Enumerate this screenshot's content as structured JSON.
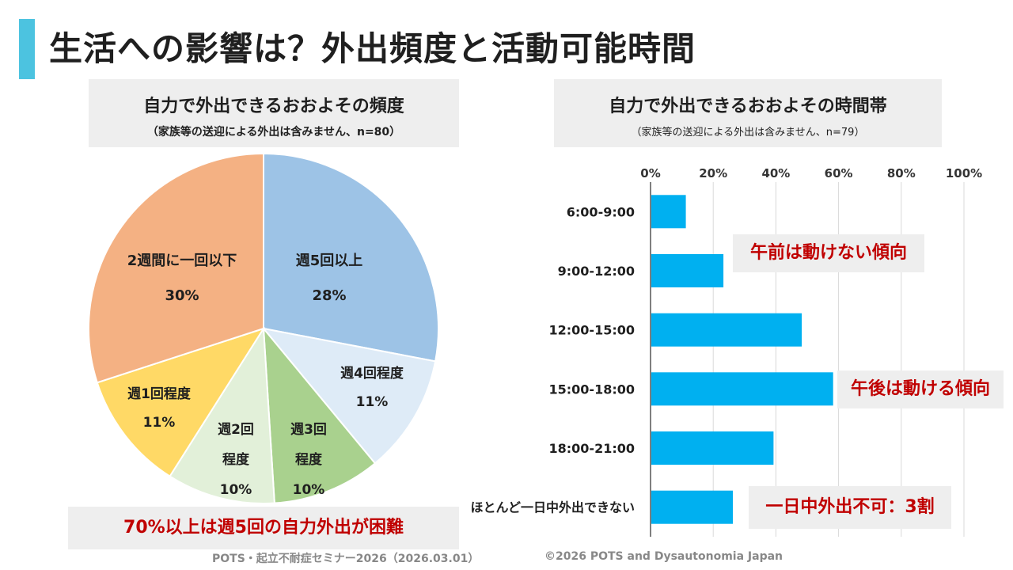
{
  "slide": {
    "title": "生活への影響は？外出頻度と活動可能時間",
    "footer_left": "POTS・起立不耐症セミナー2026（2026.03.01）",
    "footer_right": "©2026 POTS and Dysautonomia Japan",
    "accent_color": "#4cc3e0"
  },
  "left_panel": {
    "title": "自力で外出できるおおよその頻度",
    "subtitle": "（家族等の送迎による外出は含みません、n=80）",
    "callout": "70%以上は週5回の自力外出が困難"
  },
  "right_panel": {
    "title": "自力で外出できるおおよその時間帯",
    "subtitle": "（家族等の送迎による外出は含みません、n=79）",
    "annotations": [
      "午前は動けない傾向",
      "午後は動ける傾向",
      "一日中外出不可：3割"
    ]
  },
  "chart_data": [
    {
      "type": "pie",
      "slices": [
        {
          "label": "週5回以上",
          "label_lines": [
            "週5回以上"
          ],
          "value": 28,
          "value_text": "28%",
          "color": "#9dc3e6"
        },
        {
          "label": "週4回程度",
          "label_lines": [
            "週4回程度"
          ],
          "value": 11,
          "value_text": "11%",
          "color": "#deebf7"
        },
        {
          "label": "週3回程度",
          "label_lines": [
            "週3回",
            "程度"
          ],
          "value": 10,
          "value_text": "10%",
          "color": "#a9d18e"
        },
        {
          "label": "週2回程度",
          "label_lines": [
            "週2回",
            "程度"
          ],
          "value": 10,
          "value_text": "10%",
          "color": "#e2f0d9"
        },
        {
          "label": "週1回程度",
          "label_lines": [
            "週1回程度"
          ],
          "value": 11,
          "value_text": "11%",
          "color": "#ffd966"
        },
        {
          "label": "2週間に一回以下",
          "label_lines": [
            "2週間に一回以下"
          ],
          "value": 30,
          "value_text": "30%",
          "color": "#f4b183"
        }
      ]
    },
    {
      "type": "bar",
      "orientation": "horizontal",
      "categories": [
        "6:00-9:00",
        "9:00-12:00",
        "12:00-15:00",
        "15:00-18:00",
        "18:00-21:00",
        "ほとんど一日中外出できない"
      ],
      "values": [
        11,
        23,
        48,
        58,
        39,
        26
      ],
      "xlim": [
        0,
        100
      ],
      "xticks": [
        "0%",
        "20%",
        "40%",
        "60%",
        "80%",
        "100%"
      ],
      "xtick_values": [
        0,
        20,
        40,
        60,
        80,
        100
      ],
      "bar_color": "#00b0f0",
      "grid": true
    }
  ]
}
